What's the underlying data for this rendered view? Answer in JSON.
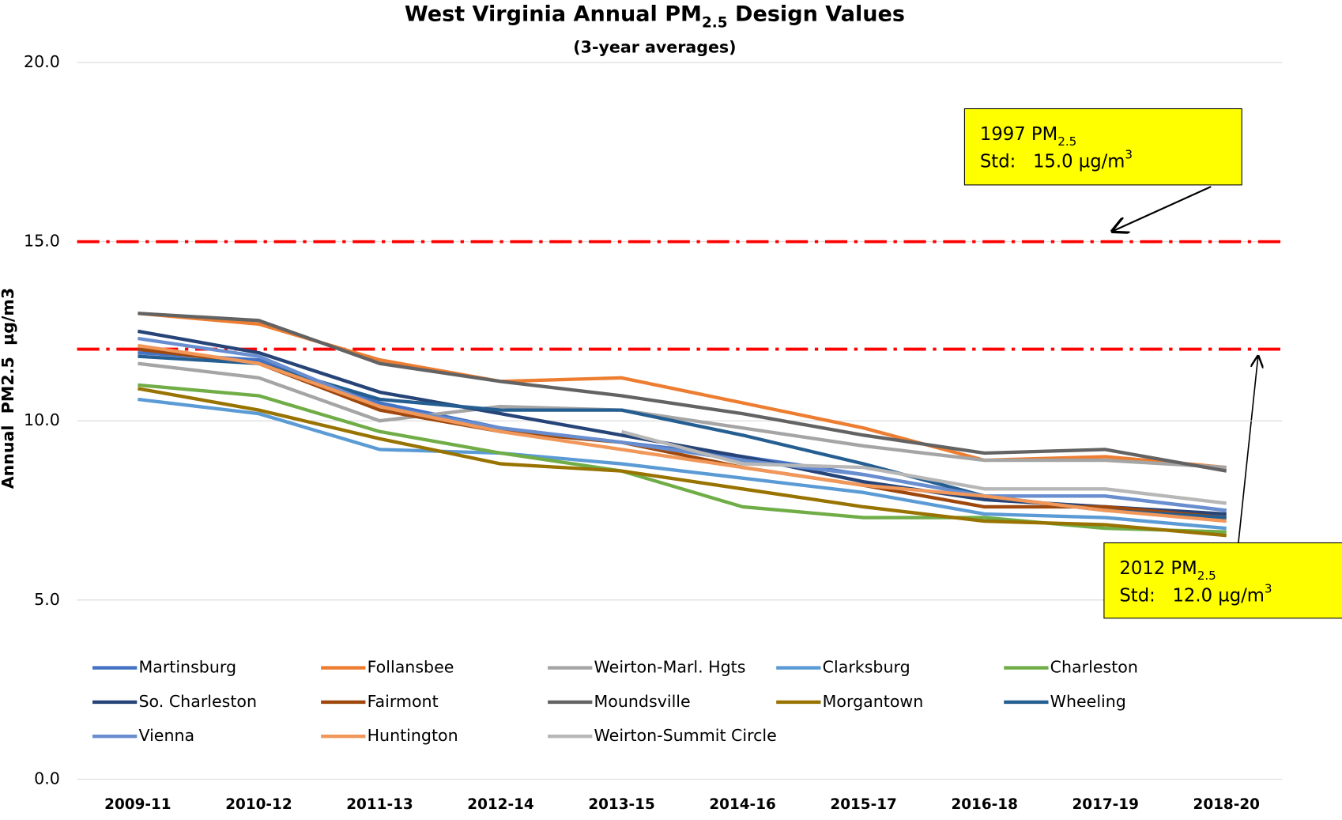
{
  "chart_data": {
    "type": "line",
    "title": [
      "West Virginia Annual PM",
      "2.5",
      " Design Values"
    ],
    "subtitle": "(3-year averages)",
    "ylabel": "Annual  PM2.5  µg/m3",
    "categories": [
      "2009-11",
      "2010-12",
      "2011-13",
      "2012-14",
      "2013-15",
      "2014-16",
      "2015-17",
      "2016-18",
      "2017-19",
      "2018-20"
    ],
    "ylim": [
      0,
      20
    ],
    "yticks": [
      {
        "value": 0,
        "label": "0.0"
      },
      {
        "value": 5,
        "label": "5.0"
      },
      {
        "value": 10,
        "label": "10.0"
      },
      {
        "value": 15,
        "label": "15.0"
      },
      {
        "value": 20,
        "label": "20.0"
      }
    ],
    "grid": true,
    "reference_lines": [
      {
        "value": 15,
        "color": "#ff0000"
      },
      {
        "value": 12,
        "color": "#ff0000"
      }
    ],
    "annotations": [
      {
        "lines": [
          [
            "1997 PM",
            "2.5"
          ],
          [
            "Std:   15.0 µg/m",
            "3"
          ]
        ]
      },
      {
        "lines": [
          [
            "2012 PM",
            "2.5"
          ],
          [
            "Std:   12.0 µg/m",
            "3"
          ]
        ]
      }
    ],
    "series": [
      {
        "name": "Martinsburg",
        "color": "#4472c4",
        "values": [
          11.9,
          11.7,
          10.5,
          9.8,
          9.4,
          9.0,
          8.5,
          7.9,
          7.9,
          7.5
        ]
      },
      {
        "name": "Follansbee",
        "color": "#ed7d31",
        "values": [
          13.0,
          12.7,
          11.7,
          11.1,
          11.2,
          10.5,
          9.8,
          8.9,
          9.0,
          8.7
        ]
      },
      {
        "name": "Weirton-Marl. Hgts",
        "color": "#a5a5a5",
        "values": [
          11.6,
          11.2,
          10.0,
          10.4,
          10.3,
          9.8,
          9.3,
          8.9,
          8.9,
          8.7
        ]
      },
      {
        "name": "Clarksburg",
        "color": "#5b9bd5",
        "values": [
          10.6,
          10.2,
          9.2,
          9.1,
          8.8,
          8.4,
          8.0,
          7.4,
          7.3,
          7.0
        ]
      },
      {
        "name": "Charleston",
        "color": "#70ad47",
        "values": [
          11.0,
          10.7,
          9.7,
          9.1,
          8.6,
          7.6,
          7.3,
          7.3,
          7.0,
          6.9
        ]
      },
      {
        "name": "So. Charleston",
        "color": "#264478",
        "values": [
          12.5,
          11.9,
          10.8,
          10.2,
          9.6,
          9.0,
          8.3,
          7.8,
          7.6,
          7.4
        ]
      },
      {
        "name": "Fairmont",
        "color": "#9e480e",
        "values": [
          12.0,
          11.6,
          10.3,
          9.7,
          9.4,
          8.7,
          8.2,
          7.6,
          7.6,
          7.3
        ]
      },
      {
        "name": "Moundsville",
        "color": "#636363",
        "values": [
          13.0,
          12.8,
          11.6,
          11.1,
          10.7,
          10.2,
          9.6,
          9.1,
          9.2,
          8.6
        ]
      },
      {
        "name": "Morgantown",
        "color": "#997300",
        "values": [
          10.9,
          10.3,
          9.5,
          8.8,
          8.6,
          8.1,
          7.6,
          7.2,
          7.1,
          6.8
        ]
      },
      {
        "name": "Wheeling",
        "color": "#255e91",
        "values": [
          11.8,
          11.6,
          10.6,
          10.3,
          10.3,
          9.6,
          8.8,
          7.9,
          7.5,
          7.3
        ]
      },
      {
        "name": "Vienna",
        "color": "#698ed0",
        "values": [
          12.3,
          11.8,
          10.4,
          9.8,
          9.4,
          8.9,
          8.5,
          7.9,
          7.9,
          7.5
        ]
      },
      {
        "name": "Huntington",
        "color": "#f1975a",
        "values": [
          12.1,
          11.6,
          10.4,
          9.7,
          9.2,
          8.7,
          8.2,
          7.9,
          7.5,
          7.2
        ]
      },
      {
        "name": "Weirton-Summit Circle",
        "color": "#b7b7b7",
        "values": [
          null,
          null,
          null,
          null,
          9.7,
          8.8,
          8.7,
          8.1,
          8.1,
          7.7
        ]
      }
    ]
  }
}
